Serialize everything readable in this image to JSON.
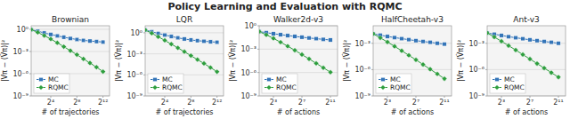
{
  "title": "Policy Learning and Evaluation with RQMC",
  "chart_data": [
    {
      "type": "line",
      "title": "Brownian",
      "x_label": "# of trajectories",
      "y_label": "|Vπ − (V̂π)|²",
      "log": "y",
      "grid": true,
      "legend": "lower left",
      "xlim": [
        1,
        13
      ],
      "ylim": [
        1e-09,
        3
      ],
      "xticks": [
        {
          "value": 4,
          "label": "2⁴"
        },
        {
          "value": 8,
          "label": "2⁸"
        },
        {
          "value": 12,
          "label": "2¹²"
        }
      ],
      "yticks": [
        {
          "value": 1e-09,
          "label": "10⁻⁹"
        },
        {
          "value": 1e-06,
          "label": "10⁻⁶"
        },
        {
          "value": 0.001,
          "label": "10⁻³"
        },
        {
          "value": 1,
          "label": "10⁰"
        }
      ],
      "x": [
        1,
        2,
        3,
        4,
        5,
        6,
        7,
        8,
        9,
        10,
        11,
        12
      ],
      "series": [
        {
          "name": "MC",
          "color": "#3475b8",
          "marker": "square",
          "values": [
            0.9,
            0.55,
            0.32,
            0.2,
            0.13,
            0.085,
            0.058,
            0.042,
            0.032,
            0.026,
            0.022,
            0.019
          ],
          "errors": [
            0.12,
            0.08,
            0.05,
            0.03,
            0.02,
            0.013,
            0.009,
            0.007,
            0.005,
            0.004,
            0.003,
            0.003
          ]
        },
        {
          "name": "RQMC",
          "color": "#2e9e3e",
          "marker": "diamond",
          "values": [
            0.9,
            0.38,
            0.14,
            0.048,
            0.015,
            0.0045,
            0.0013,
            0.00037,
            0.0001,
            2.8e-05,
            7.5e-06,
            1.9e-06
          ],
          "errors": [
            0.12,
            0.06,
            0.025,
            0.009,
            0.003,
            0.0009,
            0.00028,
            8e-05,
            2e-05,
            6e-06,
            1.6e-06,
            4e-07
          ]
        }
      ]
    },
    {
      "type": "line",
      "title": "LQR",
      "x_label": "# of trajectories",
      "y_label": "|Vπ − (V̂π)|²",
      "log": "y",
      "grid": true,
      "legend": "lower left",
      "xlim": [
        1,
        13
      ],
      "ylim": [
        1e-09,
        10
      ],
      "xticks": [
        {
          "value": 4,
          "label": "2⁴"
        },
        {
          "value": 8,
          "label": "2⁸"
        },
        {
          "value": 12,
          "label": "2¹²"
        }
      ],
      "yticks": [
        {
          "value": 1e-09,
          "label": "10⁻⁹"
        },
        {
          "value": 1e-06,
          "label": "10⁻⁶"
        },
        {
          "value": 0.001,
          "label": "10⁻³"
        },
        {
          "value": 1,
          "label": "10⁰"
        }
      ],
      "x": [
        1,
        2,
        3,
        4,
        5,
        6,
        7,
        8,
        9,
        10,
        11,
        12
      ],
      "series": [
        {
          "name": "MC",
          "color": "#3475b8",
          "marker": "square",
          "values": [
            2.5,
            1.4,
            0.8,
            0.48,
            0.3,
            0.19,
            0.13,
            0.095,
            0.075,
            0.062,
            0.052,
            0.045
          ],
          "errors": [
            0.4,
            0.22,
            0.13,
            0.08,
            0.05,
            0.03,
            0.02,
            0.015,
            0.012,
            0.01,
            0.008,
            0.007
          ]
        },
        {
          "name": "RQMC",
          "color": "#2e9e3e",
          "marker": "diamond",
          "values": [
            2.5,
            0.85,
            0.27,
            0.082,
            0.024,
            0.007,
            0.002,
            0.00055,
            0.00015,
            4.2e-05,
            1.1e-05,
            2.8e-06
          ],
          "errors": [
            0.35,
            0.13,
            0.045,
            0.014,
            0.004,
            0.0013,
            0.00038,
            0.0001,
            2.8e-05,
            8e-06,
            2.2e-06,
            5.6e-07
          ]
        }
      ]
    },
    {
      "type": "line",
      "title": "Walker2d-v3",
      "x_label": "# of actions",
      "y_label": "|Vπ − (V̂π)|²",
      "log": "y",
      "grid": true,
      "legend": "lower left",
      "xlim": [
        1,
        12
      ],
      "ylim": [
        1e-09,
        1
      ],
      "xticks": [
        {
          "value": 3,
          "label": "2³"
        },
        {
          "value": 7,
          "label": "2⁷"
        },
        {
          "value": 11,
          "label": "2¹¹"
        }
      ],
      "yticks": [
        {
          "value": 1e-09,
          "label": "10⁻⁹"
        },
        {
          "value": 1e-06,
          "label": "10⁻⁶"
        },
        {
          "value": 0.001,
          "label": "10⁻³"
        },
        {
          "value": 1,
          "label": "10⁰"
        }
      ],
      "x": [
        1,
        2,
        3,
        4,
        5,
        6,
        7,
        8,
        9,
        10,
        11
      ],
      "series": [
        {
          "name": "MC",
          "color": "#3475b8",
          "marker": "square",
          "values": [
            0.18,
            0.13,
            0.095,
            0.072,
            0.055,
            0.043,
            0.034,
            0.027,
            0.022,
            0.018,
            0.015
          ],
          "errors": [
            0.045,
            0.032,
            0.024,
            0.018,
            0.014,
            0.011,
            0.009,
            0.007,
            0.006,
            0.005,
            0.004
          ]
        },
        {
          "name": "RQMC",
          "color": "#2e9e3e",
          "marker": "diamond",
          "values": [
            0.18,
            0.068,
            0.024,
            0.0078,
            0.0024,
            0.00072,
            0.0002,
            5.6e-05,
            1.5e-05,
            4.1e-06,
            1.1e-06
          ],
          "errors": [
            0.045,
            0.018,
            0.006,
            0.002,
            0.0006,
            0.00018,
            5e-05,
            1.4e-05,
            3.8e-06,
            1.1e-06,
            2.8e-07
          ]
        }
      ]
    },
    {
      "type": "line",
      "title": "HalfCheetah-v3",
      "x_label": "# of actions",
      "y_label": "|Vπ − (V̂π)|²",
      "log": "y",
      "grid": true,
      "legend": "lower left",
      "xlim": [
        1,
        12
      ],
      "ylim": [
        1e-09,
        0.1
      ],
      "xticks": [
        {
          "value": 3,
          "label": "2³"
        },
        {
          "value": 7,
          "label": "2⁷"
        },
        {
          "value": 11,
          "label": "2¹¹"
        }
      ],
      "yticks": [
        {
          "value": 1e-09,
          "label": "10⁻⁹"
        },
        {
          "value": 1e-06,
          "label": "10⁻⁶"
        },
        {
          "value": 0.001,
          "label": "10⁻³"
        }
      ],
      "x": [
        1,
        2,
        3,
        4,
        5,
        6,
        7,
        8,
        9,
        10,
        11
      ],
      "series": [
        {
          "name": "MC",
          "color": "#3475b8",
          "marker": "square",
          "values": [
            0.012,
            0.0085,
            0.006,
            0.0045,
            0.0034,
            0.0026,
            0.002,
            0.0016,
            0.0013,
            0.001,
            0.0008
          ],
          "errors": [
            0.003,
            0.002,
            0.0015,
            0.0011,
            0.00085,
            0.00065,
            0.0005,
            0.0004,
            0.00032,
            0.00026,
            0.0002
          ]
        },
        {
          "name": "RQMC",
          "color": "#2e9e3e",
          "marker": "diamond",
          "values": [
            0.012,
            0.0042,
            0.0014,
            0.00045,
            0.00014,
            4.3e-05,
            1.3e-05,
            3.8e-06,
            1.1e-06,
            3.2e-07,
            9.2e-08
          ],
          "errors": [
            0.003,
            0.0011,
            0.00037,
            0.00012,
            3.7e-05,
            1.1e-05,
            3.4e-06,
            1e-06,
            2.9e-07,
            8.5e-08,
            2.5e-08
          ]
        }
      ]
    },
    {
      "type": "line",
      "title": "Ant-v3",
      "x_label": "# of actions",
      "y_label": "|Vπ − (V̂π)|²",
      "log": "y",
      "grid": true,
      "legend": "lower left",
      "xlim": [
        1,
        12
      ],
      "ylim": [
        1e-09,
        0.1
      ],
      "xticks": [
        {
          "value": 3,
          "label": "2³"
        },
        {
          "value": 7,
          "label": "2⁷"
        },
        {
          "value": 11,
          "label": "2¹¹"
        }
      ],
      "yticks": [
        {
          "value": 1e-09,
          "label": "10⁻⁹"
        },
        {
          "value": 1e-06,
          "label": "10⁻⁶"
        },
        {
          "value": 0.001,
          "label": "10⁻³"
        }
      ],
      "x": [
        1,
        2,
        3,
        4,
        5,
        6,
        7,
        8,
        9,
        10,
        11
      ],
      "series": [
        {
          "name": "MC",
          "color": "#3475b8",
          "marker": "square",
          "values": [
            0.015,
            0.011,
            0.0078,
            0.0057,
            0.0043,
            0.0033,
            0.0025,
            0.002,
            0.0016,
            0.0013,
            0.001
          ],
          "errors": [
            0.004,
            0.003,
            0.002,
            0.0015,
            0.0011,
            0.00085,
            0.00065,
            0.0005,
            0.0004,
            0.00032,
            0.00026
          ]
        },
        {
          "name": "RQMC",
          "color": "#2e9e3e",
          "marker": "diamond",
          "values": [
            0.015,
            0.0052,
            0.0017,
            0.00054,
            0.00017,
            5.2e-05,
            1.6e-05,
            4.9e-06,
            1.5e-06,
            4.5e-07,
            1.4e-07
          ],
          "errors": [
            0.004,
            0.0014,
            0.00046,
            0.00015,
            4.7e-05,
            1.4e-05,
            4.4e-06,
            1.3e-06,
            4e-07,
            1.2e-07,
            3.7e-08
          ]
        }
      ]
    }
  ]
}
